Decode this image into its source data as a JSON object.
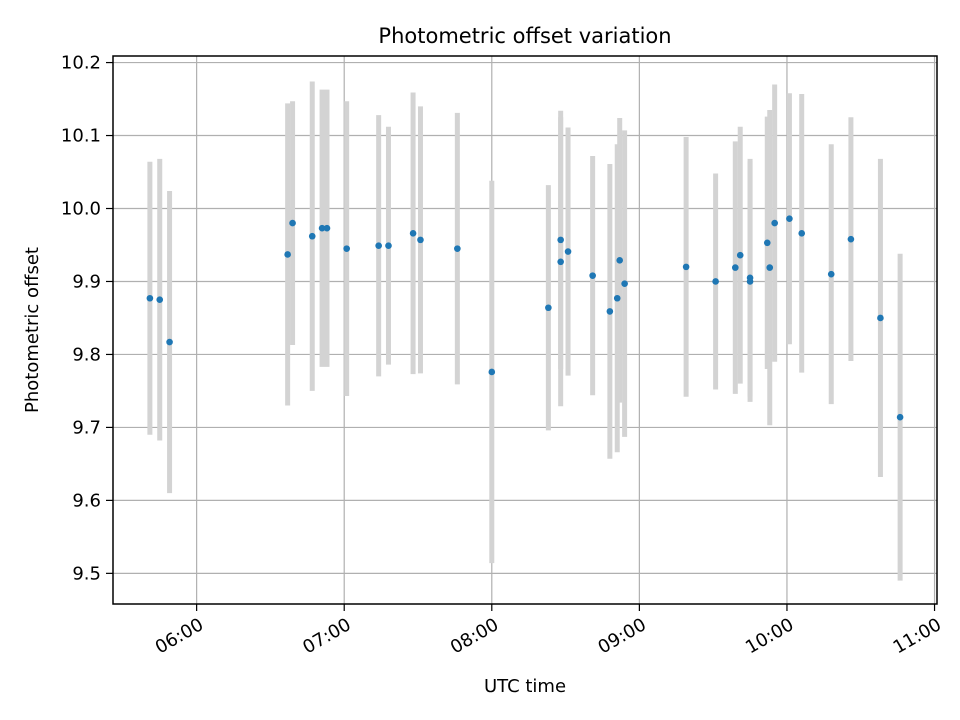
{
  "chart_data": {
    "type": "scatter",
    "title": "Photometric offset variation",
    "xlabel": "UTC time",
    "ylabel": "Photometric offset",
    "x_axis_kind": "time",
    "xlim": [
      "05:26",
      "11:01"
    ],
    "ylim": [
      9.458,
      10.209
    ],
    "grid": true,
    "legend": "none",
    "x_ticks": [
      "06:00",
      "07:00",
      "08:00",
      "09:00",
      "10:00",
      "11:00"
    ],
    "y_ticks": [
      "9.5",
      "9.6",
      "9.7",
      "9.8",
      "9.9",
      "10.0",
      "10.1",
      "10.2"
    ],
    "series": [
      {
        "marker_color": "#1f77b4",
        "errorbar_color": "#d3d3d3",
        "points": [
          {
            "x": "05:41",
            "y": 9.877,
            "err": 0.187
          },
          {
            "x": "05:45",
            "y": 9.875,
            "err": 0.193
          },
          {
            "x": "05:49",
            "y": 9.817,
            "err": 0.207
          },
          {
            "x": "06:37",
            "y": 9.937,
            "err": 0.207
          },
          {
            "x": "06:39",
            "y": 9.98,
            "err": 0.167
          },
          {
            "x": "06:47",
            "y": 9.962,
            "err": 0.212
          },
          {
            "x": "06:51",
            "y": 9.973,
            "err": 0.19
          },
          {
            "x": "06:53",
            "y": 9.973,
            "err": 0.19
          },
          {
            "x": "07:01",
            "y": 9.945,
            "err": 0.202
          },
          {
            "x": "07:14",
            "y": 9.949,
            "err": 0.179
          },
          {
            "x": "07:18",
            "y": 9.949,
            "err": 0.163
          },
          {
            "x": "07:28",
            "y": 9.966,
            "err": 0.193
          },
          {
            "x": "07:31",
            "y": 9.957,
            "err": 0.183
          },
          {
            "x": "07:46",
            "y": 9.945,
            "err": 0.186
          },
          {
            "x": "08:00",
            "y": 9.776,
            "err": 0.262
          },
          {
            "x": "08:23",
            "y": 9.864,
            "err": 0.168
          },
          {
            "x": "08:28",
            "y": 9.957,
            "err": 0.177
          },
          {
            "x": "08:28",
            "y": 9.927,
            "err": 0.198
          },
          {
            "x": "08:31",
            "y": 9.941,
            "err": 0.17
          },
          {
            "x": "08:41",
            "y": 9.908,
            "err": 0.164
          },
          {
            "x": "08:48",
            "y": 9.859,
            "err": 0.202
          },
          {
            "x": "08:51",
            "y": 9.877,
            "err": 0.211
          },
          {
            "x": "08:52",
            "y": 9.929,
            "err": 0.195
          },
          {
            "x": "08:54",
            "y": 9.897,
            "err": 0.21
          },
          {
            "x": "09:19",
            "y": 9.92,
            "err": 0.178
          },
          {
            "x": "09:31",
            "y": 9.9,
            "err": 0.148
          },
          {
            "x": "09:39",
            "y": 9.919,
            "err": 0.173
          },
          {
            "x": "09:41",
            "y": 9.936,
            "err": 0.176
          },
          {
            "x": "09:45",
            "y": 9.905,
            "err": 0.163
          },
          {
            "x": "09:45",
            "y": 9.9,
            "err": 0.165
          },
          {
            "x": "09:52",
            "y": 9.953,
            "err": 0.173
          },
          {
            "x": "09:53",
            "y": 9.919,
            "err": 0.216
          },
          {
            "x": "09:55",
            "y": 9.98,
            "err": 0.19
          },
          {
            "x": "10:01",
            "y": 9.986,
            "err": 0.172
          },
          {
            "x": "10:06",
            "y": 9.966,
            "err": 0.191
          },
          {
            "x": "10:18",
            "y": 9.91,
            "err": 0.178
          },
          {
            "x": "10:26",
            "y": 9.958,
            "err": 0.167
          },
          {
            "x": "10:38",
            "y": 9.85,
            "err": 0.218
          },
          {
            "x": "10:46",
            "y": 9.714,
            "err": 0.224
          }
        ]
      }
    ]
  }
}
